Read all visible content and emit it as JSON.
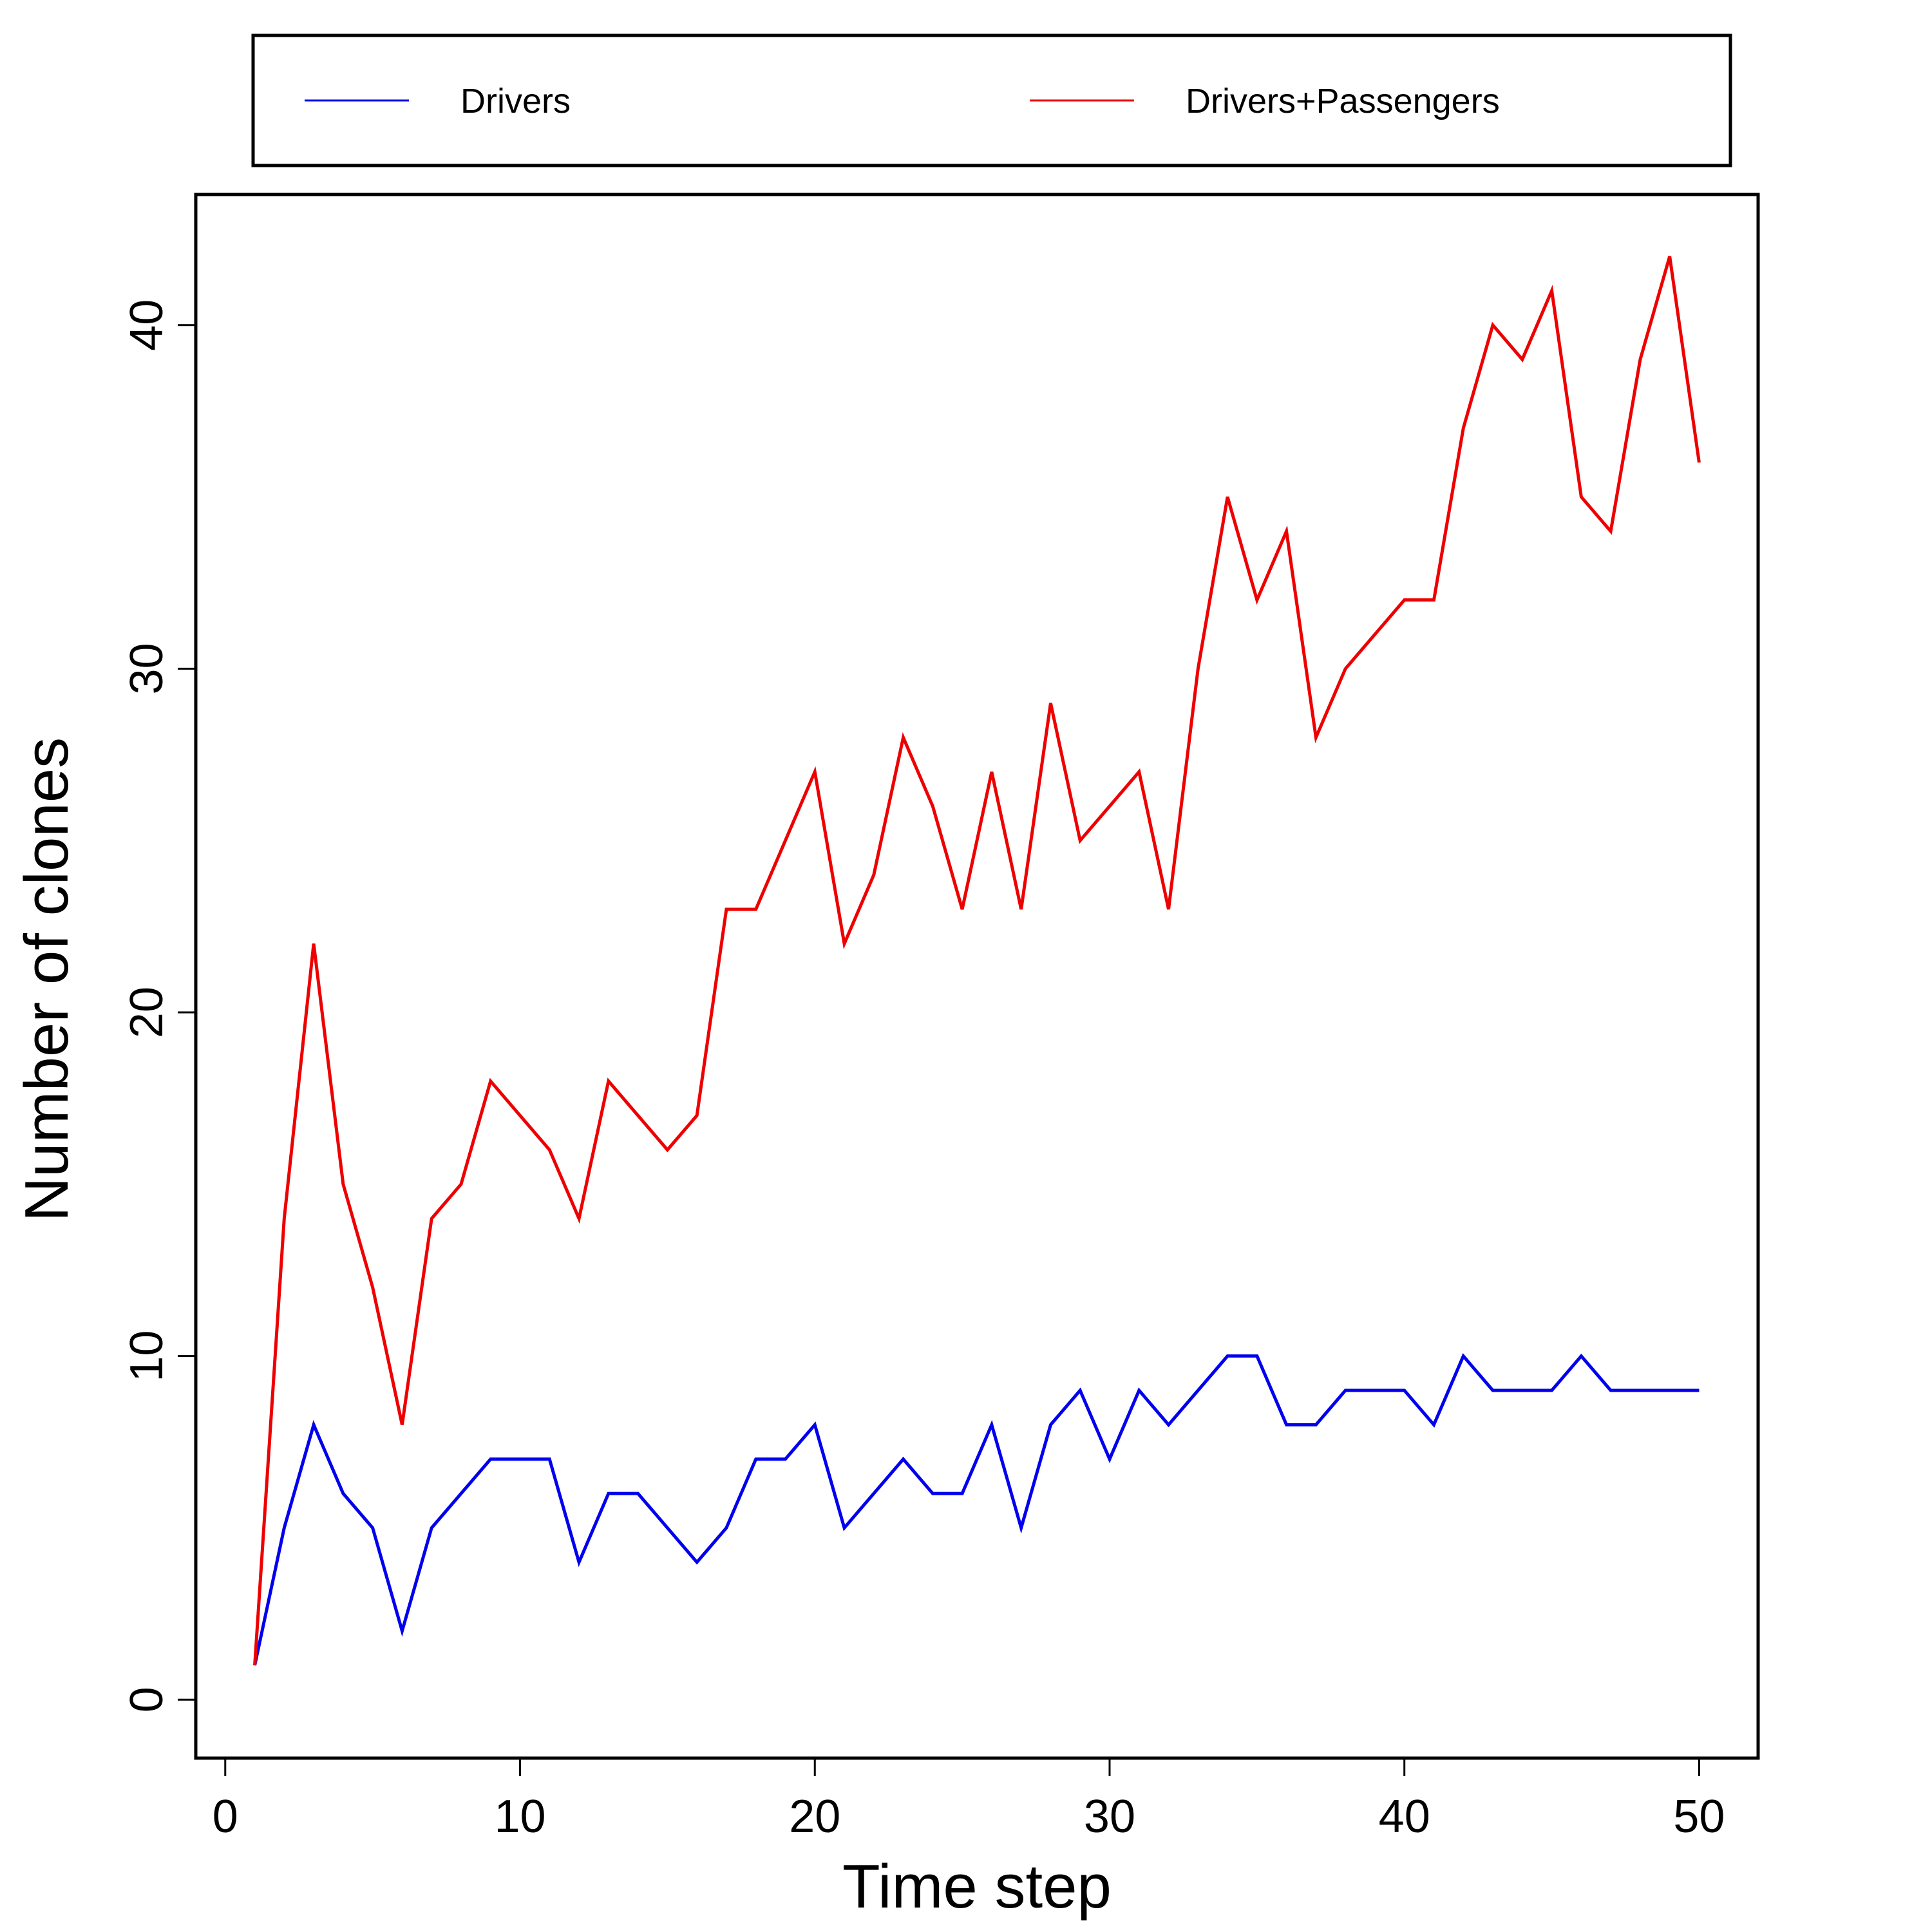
{
  "chart_data": {
    "type": "line",
    "title": "",
    "xlabel": "Time step",
    "ylabel": "Number of clones",
    "xlim": [
      -1,
      52
    ],
    "ylim": [
      -1.7,
      43.8
    ],
    "xticks": [
      0,
      10,
      20,
      30,
      40,
      50
    ],
    "yticks": [
      0,
      10,
      20,
      30,
      40
    ],
    "grid": false,
    "legend": {
      "position": "top",
      "columns": 2
    },
    "x": [
      1,
      2,
      3,
      4,
      5,
      6,
      7,
      8,
      9,
      10,
      11,
      12,
      13,
      14,
      15,
      16,
      17,
      18,
      19,
      20,
      21,
      22,
      23,
      24,
      25,
      26,
      27,
      28,
      29,
      30,
      31,
      32,
      33,
      34,
      35,
      36,
      37,
      38,
      39,
      40,
      41,
      42,
      43,
      44,
      45,
      46,
      47,
      48,
      49,
      50
    ],
    "series": [
      {
        "name": "Drivers",
        "color": "#0000ee",
        "values": [
          1,
          5,
          8,
          6,
          5,
          2,
          5,
          6,
          7,
          7,
          7,
          4,
          6,
          6,
          5,
          4,
          5,
          7,
          7,
          8,
          5,
          6,
          7,
          6,
          6,
          8,
          5,
          8,
          9,
          7,
          9,
          8,
          9,
          10,
          10,
          8,
          8,
          9,
          9,
          9,
          8,
          10,
          9,
          9,
          9,
          10,
          9,
          9,
          9,
          9
        ]
      },
      {
        "name": "Drivers+Passengers",
        "color": "#ee0000",
        "values": [
          1,
          14,
          22,
          15,
          12,
          8,
          14,
          15,
          18,
          17,
          16,
          14,
          18,
          17,
          16,
          17,
          23,
          23,
          25,
          27,
          22,
          24,
          28,
          26,
          23,
          27,
          23,
          29,
          25,
          26,
          27,
          23,
          30,
          35,
          32,
          34,
          28,
          30,
          31,
          32,
          32,
          37,
          40,
          39,
          41,
          35,
          34,
          39,
          42,
          36
        ]
      }
    ]
  }
}
